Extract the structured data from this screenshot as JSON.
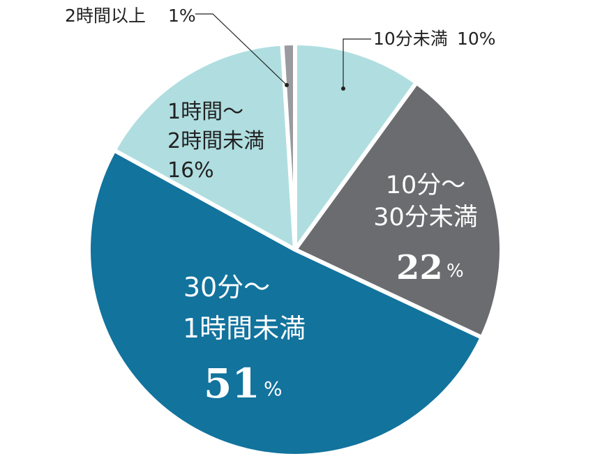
{
  "chart_data": {
    "type": "pie",
    "title": "",
    "start": "top",
    "direction": "clockwise",
    "slices": [
      {
        "label": "10分未満",
        "value": 10,
        "value_text": "10%",
        "color": "#b0dee0"
      },
      {
        "label_lines": [
          "10分～",
          "30分未満"
        ],
        "value": 22,
        "value_num": "22",
        "value_pct": "%",
        "color": "#6b6c70"
      },
      {
        "label_lines": [
          "30分～",
          "1時間未満"
        ],
        "value": 51,
        "value_num": "51",
        "value_pct": "%",
        "color": "#12739d"
      },
      {
        "label_lines": [
          "1時間～",
          "2時間未満",
          "16%"
        ],
        "value": 16,
        "color": "#b0dee0"
      },
      {
        "label": "2時間以上",
        "value": 1,
        "value_text": "1%",
        "color": "#9a9ba0"
      }
    ]
  }
}
